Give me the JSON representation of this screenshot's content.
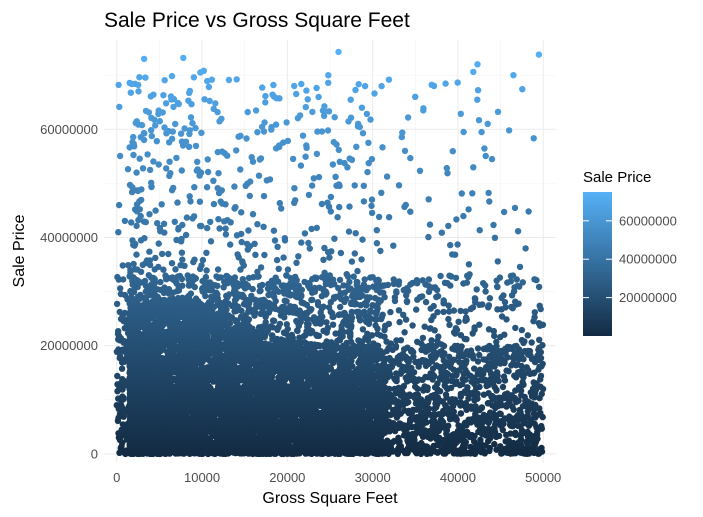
{
  "chart_data": {
    "type": "scatter",
    "title": "Sale Price vs Gross Square Feet",
    "xlabel": "Gross Square Feet",
    "ylabel": "Sale Price",
    "xlim": [
      -1500,
      51500
    ],
    "ylim": [
      -1500000,
      76500000
    ],
    "x_ticks": [
      0,
      10000,
      20000,
      30000,
      40000,
      50000
    ],
    "x_tick_labels": [
      "0",
      "10000",
      "20000",
      "30000",
      "40000",
      "50000"
    ],
    "y_ticks": [
      0,
      20000000,
      40000000,
      60000000
    ],
    "y_tick_labels": [
      "0",
      "20000000",
      "40000000",
      "60000000"
    ],
    "grid": true,
    "point_count_estimate": 9000,
    "color_scale": {
      "variable": "Sale Price",
      "low_color": "#132B43",
      "high_color": "#56B1F7",
      "range": [
        0,
        75000000
      ],
      "legend_breaks": [
        20000000,
        40000000,
        60000000
      ],
      "legend_labels": [
        "20000000",
        "40000000",
        "60000000"
      ],
      "legend_position": "right"
    },
    "highlighted_points": [
      {
        "x": 3200,
        "y": 73000000
      },
      {
        "x": 7800,
        "y": 73200000
      },
      {
        "x": 9800,
        "y": 70500000
      },
      {
        "x": 10200,
        "y": 70800000
      },
      {
        "x": 24800,
        "y": 70000000
      },
      {
        "x": 26000,
        "y": 74300000
      },
      {
        "x": 41800,
        "y": 70600000
      },
      {
        "x": 42300,
        "y": 72000000
      },
      {
        "x": 46500,
        "y": 70000000
      },
      {
        "x": 49500,
        "y": 73800000
      },
      {
        "x": 2000,
        "y": 57300000
      },
      {
        "x": 14500,
        "y": 58800000
      },
      {
        "x": 20800,
        "y": 68000000
      },
      {
        "x": 29500,
        "y": 57500000
      },
      {
        "x": 33800,
        "y": 56000000
      },
      {
        "x": 37200,
        "y": 68000000
      },
      {
        "x": 46000,
        "y": 59800000
      }
    ]
  }
}
